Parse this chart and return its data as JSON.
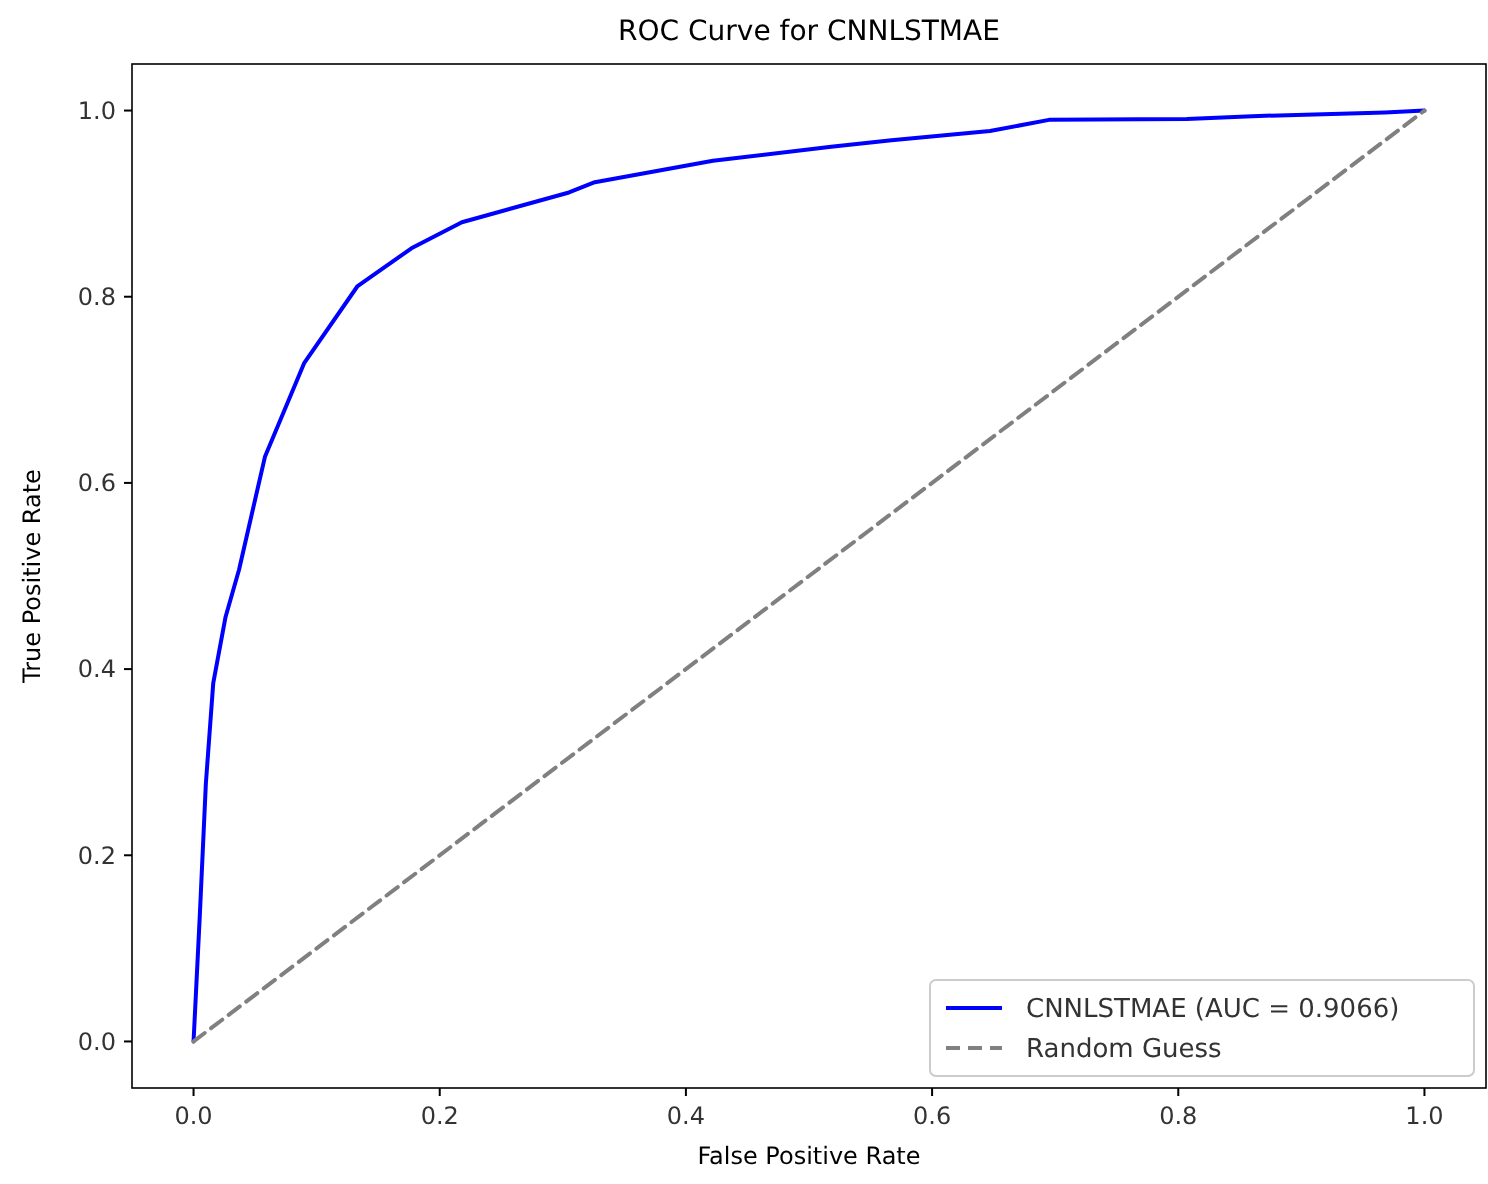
{
  "chart_data": {
    "type": "line",
    "title": "ROC Curve for CNNLSTMAE",
    "xlabel": "False Positive Rate",
    "ylabel": "True Positive Rate",
    "xlim": [
      -0.05,
      1.05
    ],
    "ylim": [
      -0.05,
      1.05
    ],
    "xticks": [
      {
        "value": 0,
        "label": "0.0"
      },
      0.2,
      0.4,
      0.6,
      0.8,
      {
        "value": 1,
        "label": "1.0"
      }
    ],
    "yticks": [
      {
        "value": 0,
        "label": "0.0"
      },
      0.2,
      0.4,
      0.6,
      0.8,
      {
        "value": 1,
        "label": "1.0"
      }
    ],
    "grid": false,
    "legend": "bottom right",
    "series": [
      {
        "name": "CNNLSTMAE (AUC = 0.9066)",
        "color": "#0000ff",
        "line_style": "solid",
        "x": [
          0,
          0.005,
          0.01,
          0.016,
          0.026,
          0.037,
          0.058,
          0.09,
          0.133,
          0.177,
          0.218,
          0.305,
          0.326,
          0.422,
          0.518,
          0.567,
          0.647,
          0.695,
          0.807,
          0.86,
          0.968,
          1
        ],
        "values": [
          0,
          0.133,
          0.277,
          0.385,
          0.456,
          0.507,
          0.628,
          0.729,
          0.811,
          0.852,
          0.88,
          0.912,
          0.923,
          0.946,
          0.961,
          0.968,
          0.978,
          0.99,
          0.991,
          0.994,
          0.998,
          1
        ]
      },
      {
        "name": "Random Guess",
        "color": "#808080",
        "line_style": "dashed",
        "x": [
          0,
          1
        ],
        "values": [
          0,
          1
        ]
      }
    ]
  }
}
